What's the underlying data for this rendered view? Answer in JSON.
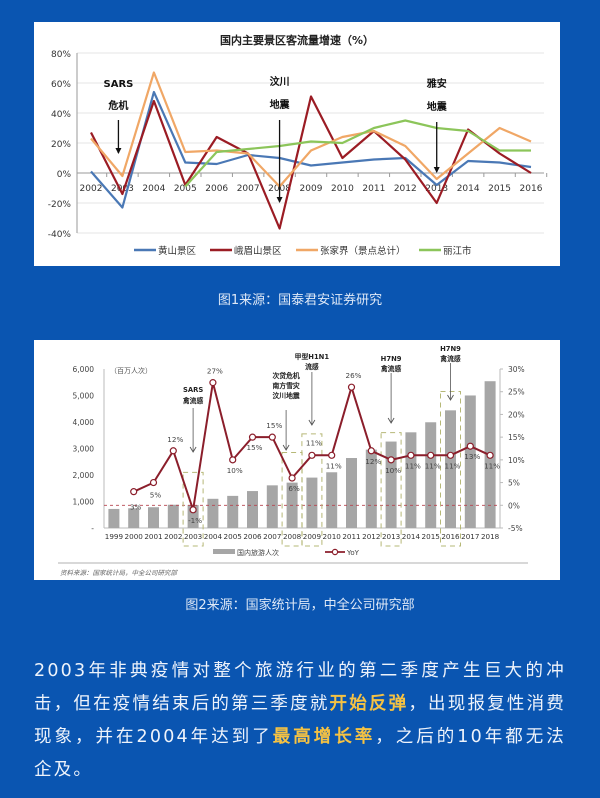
{
  "colors": {
    "background": "#0a55b1",
    "panel": "#ffffff",
    "caption_text": "#dfe9f7",
    "highlight": "#f5c243"
  },
  "captions": {
    "figure1": "图1来源：国泰君安证券研究",
    "figure2": "图2来源：国家统计局，中全公司研究部"
  },
  "paragraph": {
    "part1": "2003年非典疫情对整个旅游行业的第二季度产生巨大的冲击，但在疫情结束后的第三季度就",
    "highlight1": "开始反弹",
    "part2": "，出现报复性消费现象，并在2004年达到了",
    "highlight2": "最高增长率",
    "part3": "，之后的10年都无法企及。"
  },
  "chart_data": [
    {
      "type": "line",
      "title": "国内主要景区客流量增速（%）",
      "xlabel": "",
      "ylabel": "",
      "ylim": [
        -40,
        80
      ],
      "yticks": [
        "80%",
        "60%",
        "40%",
        "20%",
        "0%",
        "-20%",
        "-40%"
      ],
      "grid": true,
      "legend_position": "bottom",
      "x": [
        "2002",
        "2003",
        "2004",
        "2005",
        "2006",
        "2007",
        "2008",
        "2009",
        "2010",
        "2011",
        "2012",
        "2013",
        "2014",
        "2015",
        "2016"
      ],
      "series": [
        {
          "name": "黄山景区",
          "color": "#4a78b5",
          "values": [
            1,
            -23,
            54,
            7,
            6,
            12,
            10,
            5,
            7,
            9,
            10,
            -8,
            8,
            7,
            4
          ]
        },
        {
          "name": "峨眉山景区",
          "color": "#9b1c24",
          "values": [
            27,
            -14,
            48,
            -8,
            24,
            13,
            -37,
            51,
            10,
            28,
            9,
            -20,
            29,
            13,
            0
          ]
        },
        {
          "name": "张家界（景点总计）",
          "color": "#f0a766",
          "values": [
            23,
            -2,
            67,
            14,
            15,
            13,
            -9,
            15,
            24,
            28,
            18,
            -4,
            13,
            30,
            21
          ]
        },
        {
          "name": "丽江市",
          "color": "#8cc55a",
          "values": [
            null,
            null,
            null,
            -9,
            14,
            16,
            18,
            21,
            20,
            30,
            35,
            30,
            28,
            15,
            15
          ]
        }
      ],
      "annotations": [
        {
          "text": [
            "SARS",
            "危机"
          ],
          "x": "2003"
        },
        {
          "text": [
            "汶川",
            "地震"
          ],
          "x": "2008"
        },
        {
          "text": [
            "雅安",
            "地震"
          ],
          "x": "2013"
        }
      ]
    },
    {
      "type": "bar",
      "title": "",
      "unit_label": "（百万人次）",
      "ylabel_left": "国内旅游人次（百万人次）",
      "ylabel_right": "YoY",
      "ylim_left": [
        0,
        6000
      ],
      "ylim_right": [
        -5,
        30
      ],
      "yticks_left": [
        "6,000",
        "5,000",
        "4,000",
        "3,000",
        "2,000",
        "1,000",
        "-"
      ],
      "yticks_right": [
        "30%",
        "25%",
        "20%",
        "15%",
        "10%",
        "5%",
        "0%",
        "-5%"
      ],
      "categories": [
        "1999",
        "2000",
        "2001",
        "2002",
        "2003",
        "2004",
        "2005",
        "2006",
        "2007",
        "2008",
        "2009",
        "2010",
        "2011",
        "2012",
        "2013",
        "2014",
        "2015",
        "2016",
        "2017",
        "2018"
      ],
      "series": [
        {
          "name": "国内旅游人次",
          "type": "bar",
          "axis": "left",
          "color": "#a6a6a6",
          "values": [
            719,
            744,
            784,
            878,
            870,
            1102,
            1212,
            1394,
            1610,
            1712,
            1902,
            2103,
            2641,
            2957,
            3262,
            3611,
            3990,
            4440,
            5001,
            5539
          ]
        },
        {
          "name": "YoY",
          "type": "line",
          "axis": "right",
          "color": "#8b1e2b",
          "values": [
            null,
            3,
            5,
            12,
            -1,
            27,
            10,
            15,
            15,
            6,
            11,
            11,
            26,
            12,
            10,
            11,
            11,
            11,
            13,
            11
          ],
          "labels": [
            null,
            "3%",
            "5%",
            "12%",
            "-1%",
            "27%",
            "10%",
            "15%",
            "15%",
            "6%",
            "11%",
            "11%",
            "26%",
            "12%",
            "10%",
            "11%",
            "11%",
            "11%",
            "13%",
            "11%"
          ]
        }
      ],
      "legend": [
        "国内旅游人次",
        "YoY"
      ],
      "legend_position": "bottom",
      "annotations": [
        {
          "text": [
            "SARS",
            "禽流感"
          ],
          "x": "2003"
        },
        {
          "text": [
            "次贷危机",
            "南方雪灾",
            "汶川地震"
          ],
          "x": "2008"
        },
        {
          "text": [
            "甲型H1N1",
            "流感"
          ],
          "x": "2009"
        },
        {
          "text": [
            "H7N9",
            "禽流感"
          ],
          "x": "2013"
        },
        {
          "text": [
            "H7N9",
            "禽流感"
          ],
          "x": "2016"
        }
      ],
      "source": "资料来源：国家统计局，中全公司研究部"
    }
  ]
}
